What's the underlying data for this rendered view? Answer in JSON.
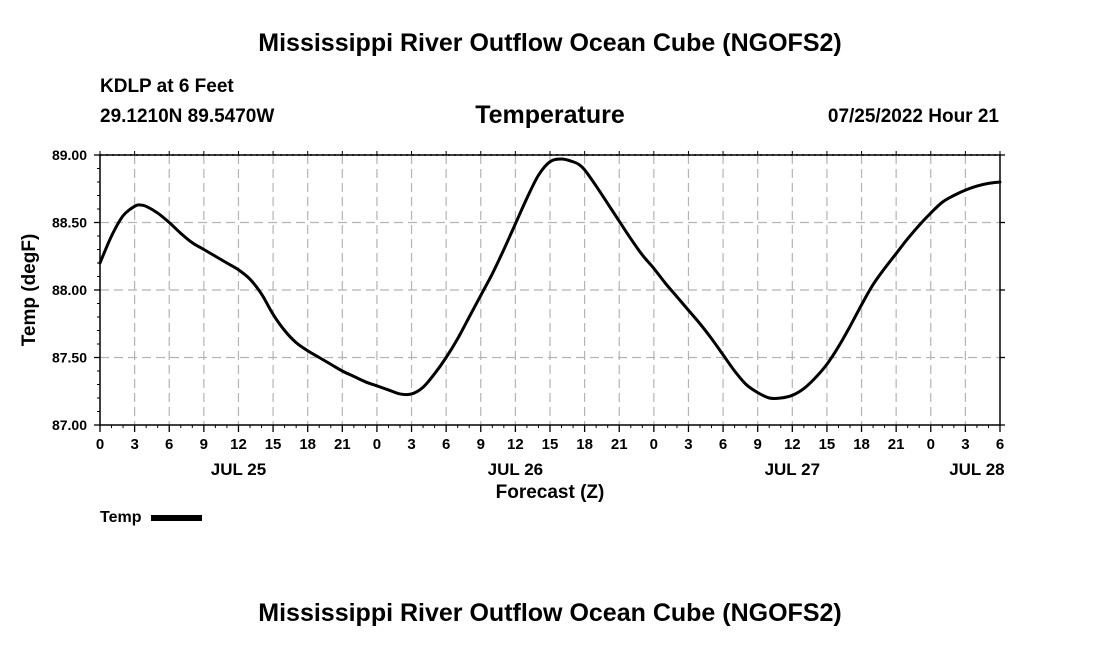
{
  "header": {
    "title": "Mississippi River Outflow Ocean Cube (NGOFS2)",
    "station": "KDLP at 6 Feet",
    "coords": "29.1210N  89.5470W",
    "subtitle": "Temperature",
    "date": "07/25/2022 Hour 21"
  },
  "footer": {
    "title": "Mississippi River Outflow Ocean Cube (NGOFS2)"
  },
  "legend": {
    "label": "Temp"
  },
  "chart_data": {
    "type": "line",
    "title": "Temperature",
    "xlabel": "Forecast (Z)",
    "ylabel": "Temp (degF)",
    "ylim": [
      87.0,
      89.0
    ],
    "yticks": [
      "87.00",
      "87.50",
      "88.00",
      "88.50",
      "89.00"
    ],
    "xlim_hours": [
      0,
      78
    ],
    "xtick_step_hours": 3,
    "xtick_labels": [
      "0",
      "3",
      "6",
      "9",
      "12",
      "15",
      "18",
      "21",
      "0",
      "3",
      "6",
      "9",
      "12",
      "15",
      "18",
      "21",
      "0",
      "3",
      "6",
      "9",
      "12",
      "15",
      "18",
      "21",
      "0",
      "3",
      "6"
    ],
    "date_labels": [
      {
        "hour": 12,
        "label": "JUL 25"
      },
      {
        "hour": 36,
        "label": "JUL 26"
      },
      {
        "hour": 60,
        "label": "JUL 27"
      },
      {
        "hour": 76,
        "label": "JUL 28"
      }
    ],
    "grid": true,
    "series": [
      {
        "name": "Temp",
        "color": "#000000",
        "x": [
          0,
          1,
          2,
          3,
          3.5,
          4,
          5,
          6,
          7,
          8,
          9,
          10,
          11,
          12,
          13,
          14,
          15,
          16,
          17,
          18,
          19,
          20,
          21,
          22,
          23,
          24,
          25,
          26,
          27,
          28,
          29,
          30,
          31,
          32,
          33,
          34,
          35,
          36,
          37,
          38,
          39,
          40,
          41,
          41.5,
          42,
          43,
          44,
          45,
          46,
          47,
          48,
          49,
          50,
          51,
          52,
          53,
          54,
          55,
          56,
          57,
          58,
          59,
          60,
          61,
          62,
          63,
          64,
          65,
          66,
          67,
          68,
          69,
          70,
          71,
          72,
          73,
          74,
          75,
          76,
          77,
          78
        ],
        "values": [
          88.2,
          88.4,
          88.55,
          88.62,
          88.63,
          88.62,
          88.57,
          88.5,
          88.42,
          88.35,
          88.3,
          88.25,
          88.2,
          88.15,
          88.08,
          87.97,
          87.82,
          87.7,
          87.61,
          87.55,
          87.5,
          87.45,
          87.4,
          87.36,
          87.32,
          87.29,
          87.26,
          87.23,
          87.23,
          87.28,
          87.38,
          87.5,
          87.64,
          87.8,
          87.96,
          88.12,
          88.3,
          88.49,
          88.68,
          88.85,
          88.95,
          88.97,
          88.95,
          88.93,
          88.89,
          88.77,
          88.64,
          88.51,
          88.38,
          88.26,
          88.16,
          88.05,
          87.95,
          87.85,
          87.75,
          87.64,
          87.52,
          87.4,
          87.3,
          87.24,
          87.2,
          87.2,
          87.22,
          87.27,
          87.35,
          87.45,
          87.58,
          87.73,
          87.89,
          88.04,
          88.16,
          88.27,
          88.38,
          88.48,
          88.57,
          88.65,
          88.7,
          88.74,
          88.77,
          88.79,
          88.8
        ]
      }
    ]
  }
}
